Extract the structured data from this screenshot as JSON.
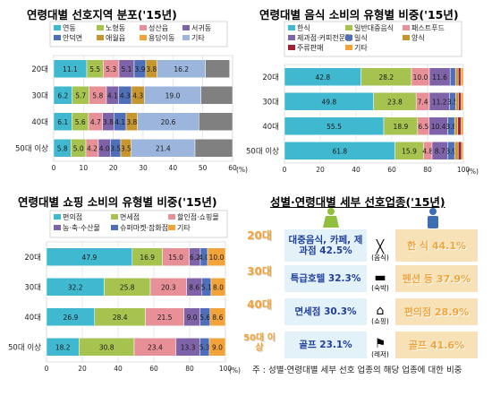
{
  "chart_data": [
    {
      "type": "bar",
      "orientation": "horizontal",
      "stacked": true,
      "title": "연령대별 선호지역 분포('15년)",
      "unit": "(%)",
      "categories": [
        "20대",
        "30대",
        "40대",
        "50대 이상"
      ],
      "xlim": [
        0,
        60
      ],
      "xticks": [
        "0",
        "10",
        "20",
        "30",
        "40",
        "50",
        "60"
      ],
      "series": [
        {
          "name": "연동",
          "color": "#3fb8d0",
          "values": [
            11.1,
            6.2,
            6.1,
            5.8
          ]
        },
        {
          "name": "노형동",
          "color": "#a6c24f",
          "values": [
            5.5,
            5.7,
            5.6,
            5.0
          ]
        },
        {
          "name": "성산읍",
          "color": "#e79097",
          "values": [
            5.3,
            5.8,
            4.7,
            4.2
          ]
        },
        {
          "name": "서귀동",
          "color": "#7f63a8",
          "values": [
            5.1,
            4.1,
            3.8,
            4.0
          ]
        },
        {
          "name": "안덕면",
          "color": "#4f6fb8",
          "values": [
            3.9,
            4.3,
            4.1,
            3.5
          ]
        },
        {
          "name": "애월읍",
          "color": "#c8962f",
          "values": [
            3.8,
            4.3,
            3.8,
            3.5
          ]
        },
        {
          "name": "용담이동",
          "color": "#f2a43a",
          "values": [
            0,
            0,
            0,
            0
          ]
        },
        {
          "name": "기타",
          "color": "#9bb5dc",
          "values": [
            16.2,
            19.0,
            20.6,
            21.4
          ]
        },
        {
          "name": "",
          "color": "#808080",
          "values": [
            8.1,
            10.6,
            11.3,
            12.6
          ]
        }
      ]
    },
    {
      "type": "bar",
      "orientation": "horizontal",
      "stacked": true,
      "title": "연령대별 음식 소비의 유형별 비중('15년)",
      "unit": "(%)",
      "categories": [
        "20대",
        "30대",
        "40대",
        "50대 이상"
      ],
      "xlim": [
        0,
        100
      ],
      "xticks": [
        "0",
        "20",
        "40",
        "60",
        "80",
        "100"
      ],
      "series": [
        {
          "name": "한식",
          "color": "#3fb8d0",
          "values": [
            42.8,
            49.8,
            55.5,
            61.8
          ]
        },
        {
          "name": "일반대중음식",
          "color": "#a6c24f",
          "values": [
            28.2,
            23.8,
            18.9,
            15.9
          ]
        },
        {
          "name": "패스트푸드",
          "color": "#e79097",
          "values": [
            10.0,
            7.4,
            6.5,
            4.8
          ]
        },
        {
          "name": "제과점·커피전문점",
          "color": "#7f63a8",
          "values": [
            11.6,
            11.2,
            10.4,
            8.7
          ]
        },
        {
          "name": "일식",
          "color": "#4f6fb8",
          "values": [
            3.0,
            3.5,
            3.8,
            3.9
          ]
        },
        {
          "name": "양식",
          "color": "#c8962f",
          "values": [
            1.5,
            1.5,
            1.8,
            2.0
          ]
        },
        {
          "name": "주류판매",
          "color": "#9b2335",
          "values": [
            1.5,
            1.6,
            1.9,
            1.9
          ]
        },
        {
          "name": "기타",
          "color": "#f2a43a",
          "values": [
            1.4,
            1.2,
            1.2,
            1.0
          ]
        }
      ]
    },
    {
      "type": "bar",
      "orientation": "horizontal",
      "stacked": true,
      "title": "연령대별 쇼핑 소비의 유형별 비중('15년)",
      "unit": "(%)",
      "categories": [
        "20대",
        "30대",
        "40대",
        "50대 이상"
      ],
      "xlim": [
        0,
        100
      ],
      "xticks": [
        "0",
        "20",
        "40",
        "60",
        "80",
        "100"
      ],
      "series": [
        {
          "name": "편의점",
          "color": "#3fb8d0",
          "values": [
            47.9,
            32.2,
            26.9,
            18.2
          ]
        },
        {
          "name": "면세점",
          "color": "#a6c24f",
          "values": [
            16.9,
            25.8,
            28.4,
            30.8
          ]
        },
        {
          "name": "할인점·쇼핑몰",
          "color": "#e79097",
          "values": [
            15.0,
            20.3,
            21.5,
            23.4
          ]
        },
        {
          "name": "농·축·수산물",
          "color": "#7f63a8",
          "values": [
            6.2,
            8.6,
            9.0,
            13.3
          ]
        },
        {
          "name": "슈퍼마켓·잡화점",
          "color": "#4f6fb8",
          "values": [
            4.0,
            5.1,
            5.6,
            5.3
          ]
        },
        {
          "name": "기타",
          "color": "#f2a43a",
          "values": [
            10.0,
            8.0,
            8.6,
            9.0
          ]
        }
      ]
    }
  ],
  "preferences": {
    "title": "성별·연령대별 세부 선호업종('15년)",
    "rows": [
      {
        "age": "20대",
        "female": "대중음식, 카페, 제과점 42.5%",
        "icon_label": "(음식)",
        "male": "한 식 44.1%"
      },
      {
        "age": "30대",
        "female": "특급호텔 32.3%",
        "icon_label": "(숙박)",
        "male": "펜션 등 37.9%"
      },
      {
        "age": "40대",
        "female": "면세점 30.3%",
        "icon_label": "(쇼핑)",
        "male": "편의점 28.9%"
      },
      {
        "age": "50대 이상",
        "female": "골프 23.1%",
        "icon_label": "(레저)",
        "male": "골프 41.6%"
      }
    ],
    "note": "주 : 성별·연령대별 세부 선호 업종의 해당 업종에 대한 비중"
  }
}
